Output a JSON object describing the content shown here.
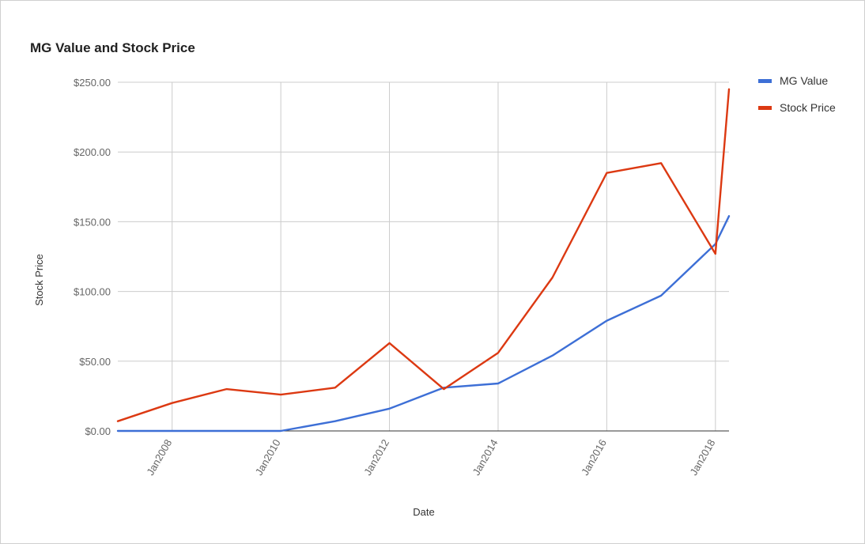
{
  "chart_data": {
    "type": "line",
    "title": "MG Value and Stock Price",
    "xlabel": "Date",
    "ylabel": "Stock Price",
    "xlim": [
      "2007-01",
      "2018-04"
    ],
    "ylim": [
      0,
      250
    ],
    "y_ticks": [
      "$0.00",
      "$50.00",
      "$100.00",
      "$150.00",
      "$200.00",
      "$250.00"
    ],
    "x_ticks": [
      {
        "date": "2008-01",
        "label": "Jan2008"
      },
      {
        "date": "2010-01",
        "label": "Jan2010"
      },
      {
        "date": "2012-01",
        "label": "Jan2012"
      },
      {
        "date": "2014-01",
        "label": "Jan2014"
      },
      {
        "date": "2016-01",
        "label": "Jan2016"
      },
      {
        "date": "2018-01",
        "label": "Jan2018"
      }
    ],
    "grid": true,
    "legend": "right",
    "series": [
      {
        "name": "MG Value",
        "color": "#3d6fd6",
        "points": [
          {
            "x": "2007-01",
            "y": 0
          },
          {
            "x": "2008-01",
            "y": 0
          },
          {
            "x": "2009-01",
            "y": 0
          },
          {
            "x": "2010-01",
            "y": 0
          },
          {
            "x": "2011-01",
            "y": 7
          },
          {
            "x": "2012-01",
            "y": 16
          },
          {
            "x": "2013-01",
            "y": 31
          },
          {
            "x": "2014-01",
            "y": 34
          },
          {
            "x": "2015-01",
            "y": 54
          },
          {
            "x": "2016-01",
            "y": 79
          },
          {
            "x": "2017-01",
            "y": 97
          },
          {
            "x": "2018-01",
            "y": 134
          },
          {
            "x": "2018-04",
            "y": 154
          }
        ]
      },
      {
        "name": "Stock Price",
        "color": "#dc3912",
        "points": [
          {
            "x": "2007-01",
            "y": 7
          },
          {
            "x": "2008-01",
            "y": 20
          },
          {
            "x": "2009-01",
            "y": 30
          },
          {
            "x": "2010-01",
            "y": 26
          },
          {
            "x": "2011-01",
            "y": 31
          },
          {
            "x": "2012-01",
            "y": 63
          },
          {
            "x": "2013-01",
            "y": 30
          },
          {
            "x": "2014-01",
            "y": 56
          },
          {
            "x": "2015-01",
            "y": 110
          },
          {
            "x": "2016-01",
            "y": 185
          },
          {
            "x": "2017-01",
            "y": 192
          },
          {
            "x": "2018-01",
            "y": 127
          },
          {
            "x": "2018-04",
            "y": 245
          }
        ]
      }
    ]
  }
}
